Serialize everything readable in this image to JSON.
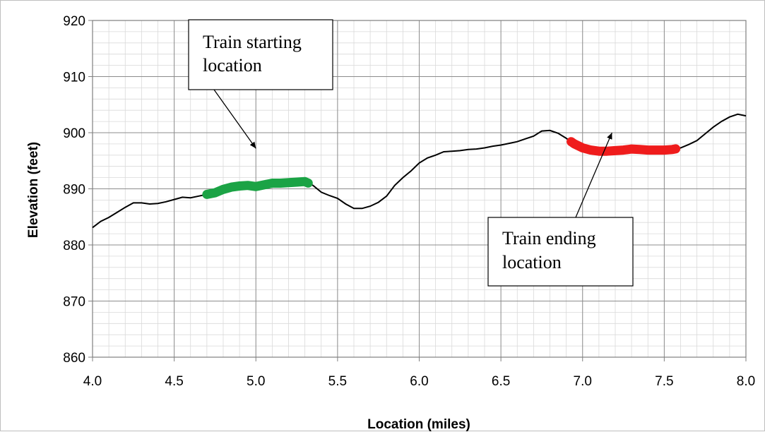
{
  "chart_data": {
    "type": "line",
    "title": "",
    "xlabel": "Location (miles)",
    "ylabel": "Elevation (feet)",
    "xlim": [
      4.0,
      8.0
    ],
    "ylim": [
      860,
      920
    ],
    "x_ticks": [
      4.0,
      4.5,
      5.0,
      5.5,
      6.0,
      6.5,
      7.0,
      7.5,
      8.0
    ],
    "x_tick_labels": [
      "4.0",
      "4.5",
      "5.0",
      "5.5",
      "6.0",
      "6.5",
      "7.0",
      "7.5",
      "8.0"
    ],
    "y_ticks": [
      860,
      870,
      880,
      890,
      900,
      910,
      920
    ],
    "y_tick_labels": [
      "860",
      "870",
      "880",
      "890",
      "900",
      "910",
      "920"
    ],
    "grid": true,
    "series": [
      {
        "color": "#000000",
        "x": [
          4.0,
          4.05,
          4.1,
          4.15,
          4.2,
          4.25,
          4.3,
          4.35,
          4.4,
          4.45,
          4.5,
          4.55,
          4.6,
          4.65,
          4.7,
          4.75,
          4.8,
          4.85,
          4.9,
          4.95,
          5.0,
          5.05,
          5.1,
          5.15,
          5.2,
          5.25,
          5.3,
          5.35,
          5.4,
          5.45,
          5.5,
          5.55,
          5.6,
          5.65,
          5.7,
          5.75,
          5.8,
          5.85,
          5.9,
          5.95,
          6.0,
          6.05,
          6.1,
          6.15,
          6.2,
          6.25,
          6.3,
          6.35,
          6.4,
          6.45,
          6.5,
          6.55,
          6.6,
          6.65,
          6.7,
          6.75,
          6.8,
          6.85,
          6.9,
          6.95,
          7.0,
          7.05,
          7.1,
          7.15,
          7.2,
          7.25,
          7.3,
          7.35,
          7.4,
          7.45,
          7.5,
          7.55,
          7.6,
          7.65,
          7.7,
          7.75,
          7.8,
          7.85,
          7.9,
          7.95,
          8.0
        ],
        "y": [
          883.1,
          884.2,
          884.9,
          885.8,
          886.7,
          887.5,
          887.5,
          887.3,
          887.4,
          887.7,
          888.1,
          888.5,
          888.4,
          888.7,
          889.0,
          889.3,
          889.9,
          890.3,
          890.5,
          890.6,
          890.4,
          890.7,
          891.0,
          891.0,
          891.1,
          891.2,
          891.3,
          890.6,
          889.4,
          888.8,
          888.3,
          887.3,
          886.5,
          886.5,
          886.9,
          887.6,
          888.7,
          890.6,
          892.0,
          893.2,
          894.6,
          895.5,
          896.0,
          896.6,
          896.7,
          896.8,
          897.0,
          897.1,
          897.3,
          897.6,
          897.8,
          898.1,
          898.4,
          898.9,
          899.4,
          900.3,
          900.4,
          899.9,
          899.0,
          898.0,
          897.3,
          896.9,
          896.7,
          896.7,
          896.8,
          896.9,
          897.1,
          897.0,
          896.9,
          896.9,
          896.9,
          897.0,
          897.3,
          897.9,
          898.6,
          899.8,
          901.0,
          902.0,
          902.8,
          903.3,
          903.0
        ]
      }
    ],
    "highlights": [
      {
        "color": "#1ba345",
        "x_start": 4.7,
        "x_end": 5.32
      },
      {
        "color": "#ef1c1c",
        "x_start": 6.93,
        "x_end": 7.57
      }
    ],
    "annotations": [
      {
        "lines": [
          "Train starting",
          "location"
        ],
        "arrow_to": [
          5.0,
          897.2
        ]
      },
      {
        "lines": [
          "Train ending",
          "location"
        ],
        "arrow_to": [
          7.18,
          900.0
        ]
      }
    ]
  }
}
